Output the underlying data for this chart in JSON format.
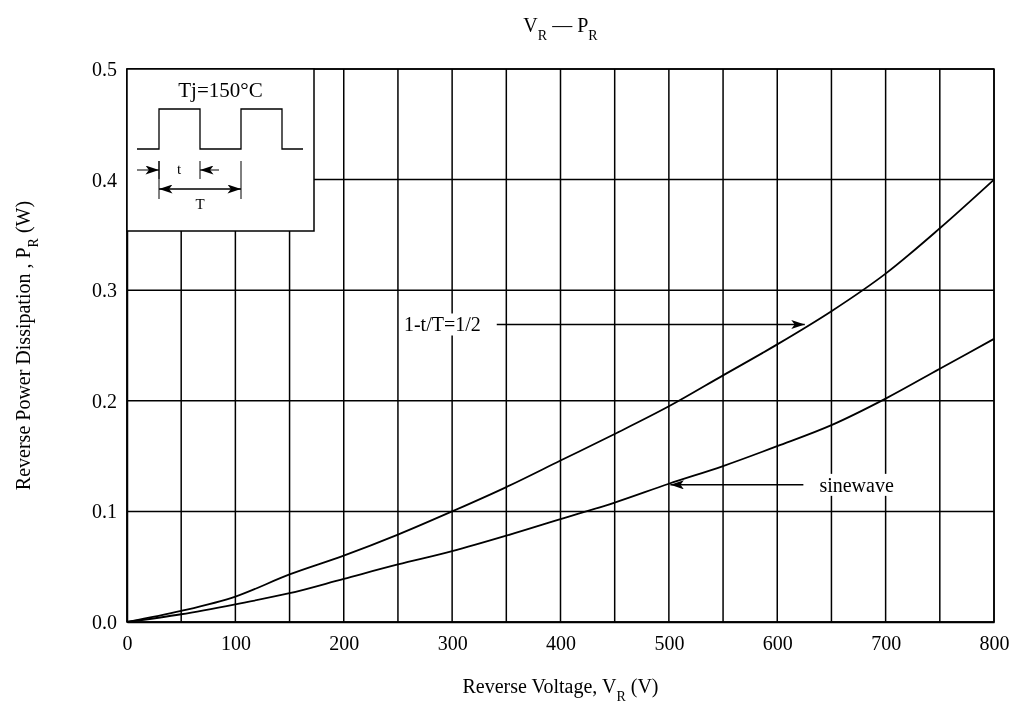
{
  "chart_data": {
    "type": "line",
    "title": "V$_{R}$ — P$_{R}$",
    "xlabel": "Reverse Voltage, V$_{R}$ (V)",
    "ylabel": "Reverse Power Dissipation , P$_{R}$ (W)",
    "xlim": [
      0,
      800
    ],
    "ylim": [
      0,
      0.5
    ],
    "xticks": [
      0,
      {
        "value": 50,
        "label": null
      },
      100,
      {
        "value": 150,
        "label": null
      },
      200,
      {
        "value": 250,
        "label": null
      },
      300,
      {
        "value": 350,
        "label": null
      },
      400,
      {
        "value": 450,
        "label": null
      },
      500,
      {
        "value": 550,
        "label": null
      },
      600,
      {
        "value": 650,
        "label": null
      },
      700,
      {
        "value": 750,
        "label": null
      },
      800
    ],
    "yticks": [
      {
        "value": 0,
        "label": "0.0"
      },
      0.1,
      0.2,
      0.3,
      0.4,
      0.5
    ],
    "grid": true,
    "marker": "none",
    "line_style": "solid",
    "x": [
      0,
      50,
      100,
      150,
      200,
      250,
      300,
      350,
      400,
      450,
      500,
      550,
      600,
      650,
      700,
      750,
      800
    ],
    "series": [
      {
        "color": "#000000",
        "values": [
          0,
          0.01,
          0.023,
          0.043,
          0.06,
          0.079,
          0.1,
          0.122,
          0.146,
          0.17,
          0.195,
          0.223,
          0.251,
          0.281,
          0.315,
          0.356,
          0.4
        ]
      },
      {
        "color": "#000000",
        "values": [
          0,
          0.007,
          0.016,
          0.026,
          0.039,
          0.052,
          0.064,
          0.078,
          0.093,
          0.108,
          0.125,
          0.141,
          0.159,
          0.178,
          0.202,
          0.229,
          0.256
        ]
      }
    ],
    "annotations": [
      {
        "text": "1-t/T=1/2",
        "x": 630,
        "y": 0.269
      },
      {
        "text": "sinewave",
        "x": 506,
        "y": 0.124
      },
      "Tj=150°C",
      "t",
      "T"
    ]
  }
}
